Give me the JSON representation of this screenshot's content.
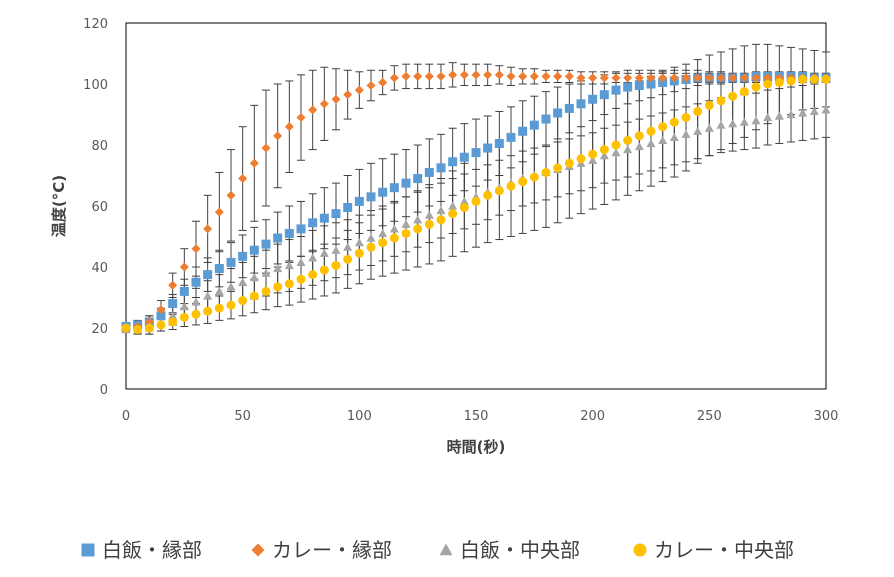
{
  "chart_data": {
    "type": "scatter",
    "xlabel": "時間(秒)",
    "ylabel": "温度(°C)",
    "xlim": [
      0,
      300
    ],
    "ylim": [
      0,
      120
    ],
    "x_ticks": [
      "0",
      "50",
      "100",
      "150",
      "200",
      "250",
      "300"
    ],
    "y_ticks": [
      "0",
      "20",
      "40",
      "60",
      "80",
      "100",
      "120"
    ],
    "grid": false,
    "legend_position": "bottom",
    "x": [
      0,
      5,
      10,
      15,
      20,
      25,
      30,
      35,
      40,
      45,
      50,
      55,
      60,
      65,
      70,
      75,
      80,
      85,
      90,
      95,
      100,
      105,
      110,
      115,
      120,
      125,
      130,
      135,
      140,
      145,
      150,
      155,
      160,
      165,
      170,
      175,
      180,
      185,
      190,
      195,
      200,
      205,
      210,
      215,
      220,
      225,
      230,
      235,
      240,
      245,
      250,
      255,
      260,
      265,
      270,
      275,
      280,
      285,
      290,
      295,
      300
    ],
    "series": [
      {
        "name": "白飯・縁部",
        "marker": "square",
        "color": "#5B9BD5",
        "values": [
          20.5,
          21.0,
          22.0,
          24.0,
          28.0,
          32.0,
          35.0,
          37.5,
          39.5,
          41.5,
          43.5,
          45.5,
          47.5,
          49.5,
          51.0,
          52.5,
          54.5,
          56.0,
          57.5,
          59.5,
          61.5,
          63.0,
          64.5,
          66.0,
          67.5,
          69.0,
          71.0,
          72.5,
          74.5,
          76.0,
          77.5,
          79.0,
          80.5,
          82.5,
          84.5,
          86.5,
          88.5,
          90.5,
          92.0,
          93.5,
          95.0,
          96.5,
          98.0,
          99.0,
          99.5,
          100.0,
          100.5,
          101.0,
          101.5,
          102.0,
          102.0,
          102.0,
          102.0,
          102.0,
          102.5,
          102.5,
          102.5,
          102.5,
          102.5,
          102.0,
          102.0
        ],
        "error": [
          1,
          1.5,
          2,
          2.5,
          3,
          4,
          5,
          5.5,
          6,
          6.5,
          7,
          7.5,
          8,
          8.5,
          9,
          9,
          9.5,
          10,
          10,
          10.5,
          10.5,
          11,
          11,
          11,
          11,
          11,
          11,
          11,
          11,
          11,
          11,
          10.5,
          10.5,
          10,
          10,
          9.5,
          9,
          8.5,
          8,
          7.5,
          7,
          6.5,
          6,
          5.5,
          5,
          4.5,
          4,
          3.5,
          3,
          2.5,
          2,
          2,
          1.5,
          1.5,
          1.5,
          1.5,
          1.5,
          1.5,
          1.5,
          1.5,
          1.5
        ]
      },
      {
        "name": "カレー・縁部",
        "marker": "diamond",
        "color": "#ED7D31",
        "values": [
          20.0,
          20.5,
          22.0,
          26.0,
          34.0,
          40.0,
          46.0,
          52.5,
          58.0,
          63.5,
          69.0,
          74.0,
          79.0,
          83.0,
          86.0,
          89.0,
          91.5,
          93.5,
          95.0,
          96.5,
          98.0,
          99.5,
          100.5,
          102.0,
          102.5,
          102.5,
          102.5,
          102.5,
          103.0,
          103.0,
          103.0,
          103.0,
          103.0,
          102.5,
          102.5,
          102.5,
          102.5,
          102.5,
          102.5,
          102.0,
          102.0,
          102.0,
          102.0,
          102.0,
          102.0,
          102.0,
          102.0,
          102.0,
          102.0,
          102.0,
          102.0,
          102.0,
          102.0,
          102.0,
          102.0,
          102.0,
          102.0,
          102.0,
          102.0,
          102.0,
          102.0
        ],
        "error": [
          1,
          1.5,
          2,
          3,
          4,
          6,
          9,
          11,
          13,
          15,
          17,
          19,
          19,
          17,
          15,
          14,
          13,
          12,
          10,
          8,
          6,
          5,
          4,
          4,
          4,
          4,
          4,
          4,
          4,
          3.5,
          3.5,
          3.5,
          3,
          3,
          2.5,
          2.5,
          2,
          2,
          2,
          2,
          2,
          2,
          1.5,
          1.5,
          1.5,
          1.5,
          1.5,
          1.5,
          1.5,
          1.5,
          1.5,
          1.5,
          1.5,
          1.5,
          1.5,
          1.5,
          1.5,
          1.5,
          1.5,
          1.5,
          1.5
        ]
      },
      {
        "name": "白飯・中央部",
        "marker": "triangle",
        "color": "#A5A5A5",
        "values": [
          19.5,
          19.5,
          20.0,
          21.5,
          24.0,
          27.0,
          28.5,
          30.5,
          32.0,
          33.5,
          35.0,
          36.5,
          38.0,
          39.5,
          40.5,
          41.5,
          43.0,
          44.5,
          45.5,
          46.5,
          48.0,
          49.5,
          51.0,
          52.5,
          54.0,
          55.5,
          57.0,
          58.5,
          60.0,
          61.5,
          63.0,
          64.5,
          66.0,
          67.5,
          69.0,
          70.0,
          71.0,
          72.0,
          73.0,
          74.0,
          75.0,
          76.5,
          77.5,
          78.5,
          79.5,
          80.5,
          81.5,
          82.5,
          83.5,
          84.5,
          85.5,
          86.5,
          87.0,
          87.5,
          88.0,
          89.0,
          89.5,
          90.0,
          90.5,
          91.0,
          91.5
        ],
        "error": [
          1,
          1.5,
          2,
          2.5,
          3,
          4,
          4.5,
          5,
          5.5,
          6,
          6.5,
          7,
          7.5,
          8,
          8.5,
          8.5,
          9,
          9,
          9,
          9,
          9,
          9,
          9,
          9,
          9,
          9,
          9,
          9,
          9,
          9,
          9,
          9,
          9,
          9,
          9,
          9,
          9,
          9,
          9,
          9,
          9,
          9,
          9,
          9,
          9,
          9,
          9,
          9,
          9,
          9,
          9,
          9,
          9,
          9,
          9,
          9,
          9,
          9,
          9,
          9,
          9
        ]
      },
      {
        "name": "カレー・中央部",
        "marker": "circle",
        "color": "#FFC000",
        "values": [
          20.0,
          19.5,
          20.0,
          21.0,
          22.0,
          23.5,
          24.5,
          25.5,
          26.5,
          27.5,
          29.0,
          30.5,
          32.0,
          33.5,
          34.5,
          36.0,
          37.5,
          39.0,
          40.5,
          42.5,
          44.5,
          46.5,
          48.0,
          49.5,
          51.0,
          52.5,
          54.0,
          55.5,
          57.5,
          59.5,
          61.5,
          63.5,
          65.0,
          66.5,
          68.0,
          69.5,
          71.0,
          72.5,
          74.0,
          75.5,
          77.0,
          78.5,
          80.0,
          81.5,
          83.0,
          84.5,
          86.0,
          87.5,
          89.0,
          91.0,
          93.0,
          94.5,
          96.0,
          97.5,
          99.0,
          100.0,
          100.5,
          101.0,
          101.5,
          101.5,
          101.5
        ],
        "error": [
          1,
          1.5,
          2,
          2,
          2.5,
          3,
          3.5,
          4,
          4,
          4.5,
          5,
          5.5,
          6,
          6.5,
          7,
          7.5,
          8,
          8.5,
          9,
          9.5,
          10,
          10.5,
          11,
          11.5,
          12,
          12.5,
          13,
          13.5,
          14,
          14.5,
          15,
          15.5,
          16,
          16.5,
          17,
          17.5,
          18,
          18,
          18,
          18,
          18,
          18,
          18,
          18,
          18,
          18,
          18,
          18,
          17.5,
          17,
          16.5,
          16,
          15.5,
          15,
          14,
          13,
          12,
          11,
          10,
          9.5,
          9
        ]
      }
    ]
  }
}
